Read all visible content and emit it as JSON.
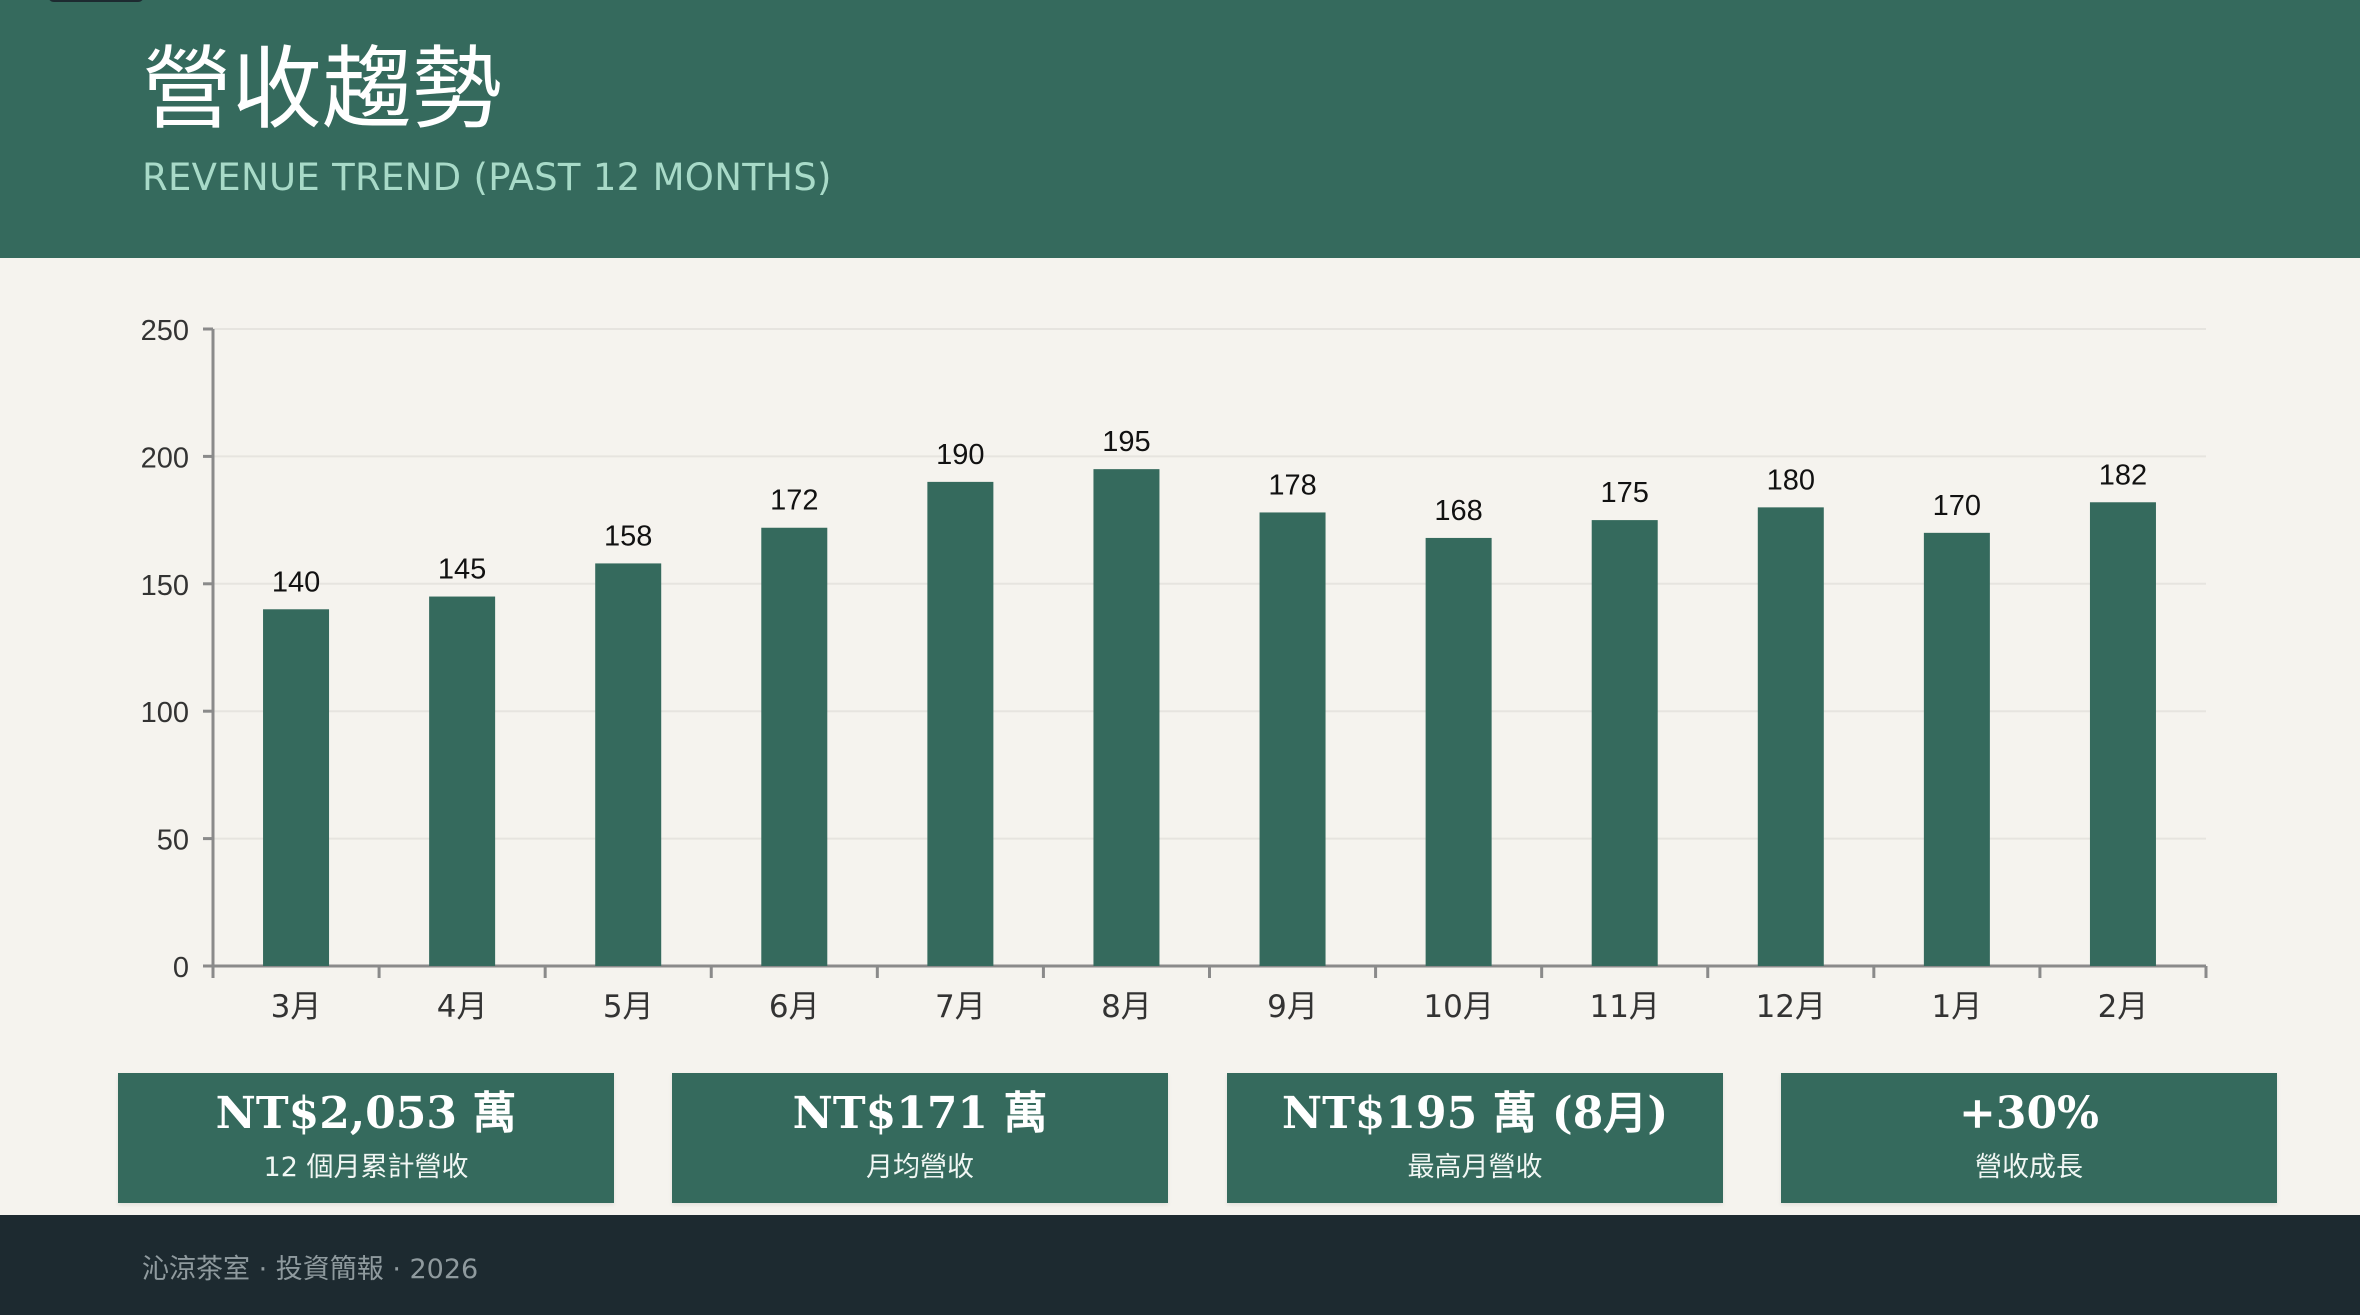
{
  "header": {
    "title": "營收趨勢",
    "subtitle": "REVENUE TREND (PAST 12 MONTHS)"
  },
  "colors": {
    "primary": "#356a5d",
    "background": "#f5f3ee",
    "footer": "#1d2a30",
    "subtitle": "#a8dac8"
  },
  "chart_data": {
    "type": "bar",
    "categories": [
      "3月",
      "4月",
      "5月",
      "6月",
      "7月",
      "8月",
      "9月",
      "10月",
      "11月",
      "12月",
      "1月",
      "2月"
    ],
    "values": [
      140,
      145,
      158,
      172,
      190,
      195,
      178,
      168,
      175,
      180,
      170,
      182
    ],
    "ylim": [
      0,
      250
    ],
    "yticks": [
      0,
      50,
      100,
      150,
      200,
      250
    ],
    "grid": true,
    "legend": "none",
    "data_labels": true,
    "bar_color": "#356a5d"
  },
  "stats": [
    {
      "value": "NT$2,053 萬",
      "label": "12 個月累計營收"
    },
    {
      "value": "NT$171 萬",
      "label": "月均營收"
    },
    {
      "value": "NT$195 萬 (8月)",
      "label": "最高月營收"
    },
    {
      "value": "+30%",
      "label": "營收成長"
    }
  ],
  "footer": {
    "text": "沁涼茶室 · 投資簡報 · 2026"
  }
}
